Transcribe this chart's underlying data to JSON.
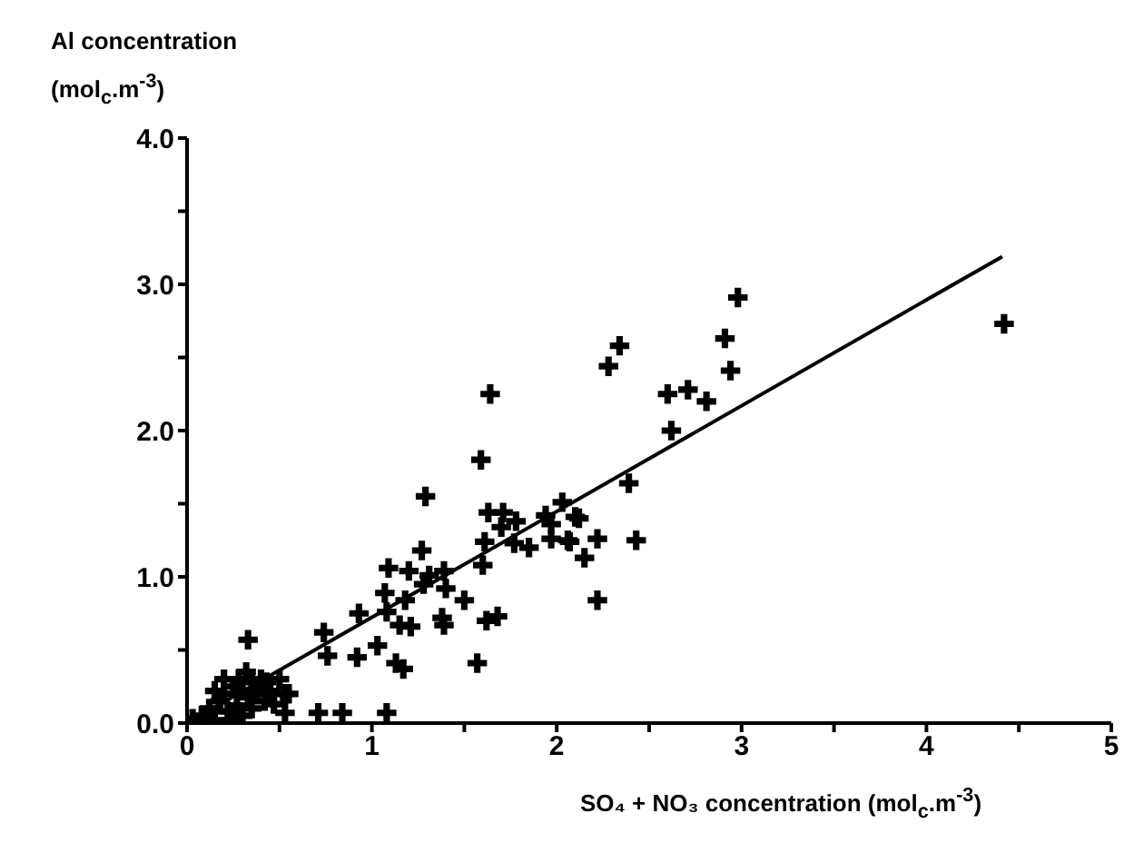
{
  "chart_data": {
    "type": "scatter",
    "xlabel": "SO₄ + NO₃ concentration (mol$_{c}$.m$^{-3}$)",
    "ylabel": "Al concentration (mol$_{c}$.m$^{-3}$)",
    "xlim": [
      0,
      5
    ],
    "xticks": [
      0,
      {
        "value": 0.5,
        "label": null
      },
      1,
      {
        "value": 1.5,
        "label": null
      },
      2,
      {
        "value": 2.5,
        "label": null
      },
      3,
      {
        "value": 3.5,
        "label": null
      },
      4,
      {
        "value": 4.5,
        "label": null
      },
      5
    ],
    "ylim": [
      0,
      4
    ],
    "yticks": [
      {
        "value": 0,
        "label": "0.0"
      },
      {
        "value": 0.5,
        "label": null
      },
      {
        "value": 1,
        "label": "1.0"
      },
      {
        "value": 1.5,
        "label": null
      },
      {
        "value": 2,
        "label": "2.0"
      },
      {
        "value": 2.5,
        "label": null
      },
      {
        "value": 3,
        "label": "3.0"
      },
      {
        "value": 3.5,
        "label": null
      },
      {
        "value": 4,
        "label": "4.0"
      }
    ],
    "marker": "cross",
    "series": [
      {
        "color": "#000000",
        "x": [
          0.03,
          0.08,
          0.12,
          0.15,
          0.18,
          0.2,
          0.22,
          0.25,
          0.27,
          0.28,
          0.3,
          0.3,
          0.32,
          0.33,
          0.35,
          0.35,
          0.38,
          0.4,
          0.42,
          0.43,
          0.45,
          0.47,
          0.5,
          0.52,
          0.55,
          0.25,
          0.2,
          0.15,
          0.33,
          0.53,
          0.71,
          0.84,
          1.08,
          0.74,
          0.76,
          0.92,
          0.93,
          1.03,
          1.07,
          1.08,
          1.13,
          1.17,
          1.15,
          1.21,
          1.09,
          1.18,
          1.2,
          1.27,
          1.29,
          1.28,
          1.31,
          1.38,
          1.39,
          1.39,
          1.4,
          1.5,
          1.57,
          1.59,
          1.64,
          1.6,
          1.61,
          1.62,
          1.68,
          1.63,
          1.71,
          1.7,
          1.78,
          1.77,
          1.85,
          1.94,
          1.97,
          2.06,
          2.03,
          2.12,
          2.15,
          2.22,
          2.22,
          2.28,
          2.34,
          2.39,
          2.43,
          2.1,
          2.07,
          1.97,
          2.6,
          2.62,
          2.71,
          2.81,
          2.91,
          2.94,
          2.98,
          4.42
        ],
        "values": [
          0.03,
          0.05,
          0.1,
          0.02,
          0.15,
          0.2,
          0.08,
          0.25,
          0.12,
          0.3,
          0.22,
          0.05,
          0.35,
          0.18,
          0.28,
          0.1,
          0.2,
          0.3,
          0.15,
          0.28,
          0.22,
          0.13,
          0.3,
          0.2,
          0.2,
          0.02,
          0.3,
          0.22,
          0.57,
          0.07,
          0.07,
          0.07,
          0.07,
          0.62,
          0.46,
          0.45,
          0.75,
          0.53,
          0.89,
          0.76,
          0.41,
          0.37,
          0.67,
          0.66,
          1.06,
          0.84,
          1.04,
          1.18,
          1.55,
          0.95,
          1.01,
          0.72,
          0.67,
          1.04,
          0.92,
          0.84,
          0.41,
          1.8,
          2.25,
          1.08,
          1.24,
          0.7,
          0.73,
          1.44,
          1.44,
          1.34,
          1.38,
          1.23,
          1.2,
          1.42,
          1.36,
          1.25,
          1.51,
          1.4,
          1.13,
          1.26,
          0.84,
          2.44,
          2.58,
          1.64,
          1.25,
          1.41,
          1.24,
          1.26,
          2.25,
          2.0,
          2.28,
          2.2,
          2.63,
          2.41,
          2.91,
          2.73
        ]
      },
      {
        "type": "line",
        "color": "#000000",
        "marker": "none",
        "line_style": "solid",
        "x": [
          0,
          4.41
        ],
        "values": [
          0,
          3.19
        ]
      }
    ]
  }
}
